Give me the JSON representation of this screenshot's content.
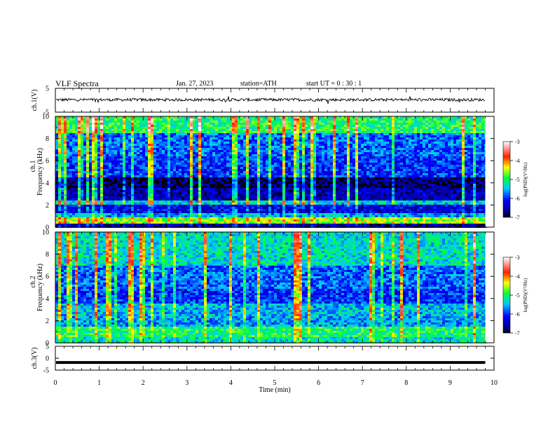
{
  "header": {
    "title": "VLF  Spectra",
    "date": "Jan. 27, 2023",
    "station": "station=ATH",
    "start": "start  UT  =   0 : 30 : 1"
  },
  "chart_data": [
    {
      "type": "line",
      "panel": "ch1-waveform",
      "ylabel": "ch.1(V)",
      "ylim": [
        -5,
        5
      ],
      "yticks": [
        "5",
        "-5"
      ],
      "xlim": [
        0,
        9.8
      ],
      "baseline_v": 0.2,
      "noise_amplitude_v": 1.2,
      "grid": false
    },
    {
      "type": "heatmap",
      "panel": "ch1-spectrogram",
      "ylabel_top": "ch.1",
      "ylabel": "Frequency  (kHz)",
      "ylim": [
        0,
        10
      ],
      "yticks": [
        "0",
        "2",
        "4",
        "6",
        "8",
        "10"
      ],
      "xlim": [
        0,
        9.8
      ],
      "colorbar": {
        "label": "log(PSD)(V²/Hz)",
        "range": [
          -7,
          -3
        ],
        "ticks": [
          "-3",
          "-4",
          "-5",
          "-6",
          "-7"
        ]
      },
      "bands": [
        {
          "f": [
            0.0,
            0.3
          ],
          "level": -6.6
        },
        {
          "f": [
            0.3,
            0.9
          ],
          "level": -4.6
        },
        {
          "f": [
            0.9,
            1.3
          ],
          "level": -5.6
        },
        {
          "f": [
            1.3,
            2.0
          ],
          "level": -6.3
        },
        {
          "f": [
            2.0,
            2.5
          ],
          "level": -5.4
        },
        {
          "f": [
            2.5,
            3.5
          ],
          "level": -6.5
        },
        {
          "f": [
            3.5,
            4.5
          ],
          "level": -6.8
        },
        {
          "f": [
            4.5,
            6.5
          ],
          "level": -6.0
        },
        {
          "f": [
            6.5,
            8.5
          ],
          "level": -5.8
        },
        {
          "f": [
            8.5,
            10.0
          ],
          "level": -5.0
        }
      ]
    },
    {
      "type": "heatmap",
      "panel": "ch2-spectrogram",
      "ylabel_top": "ch.2",
      "ylabel": "Frequency  (kHz)",
      "ylim": [
        0,
        10
      ],
      "yticks": [
        "0",
        "2",
        "4",
        "6",
        "8",
        "10"
      ],
      "xlim": [
        0,
        9.8
      ],
      "colorbar": {
        "label": "log(PSD)(V²/Hz)",
        "range": [
          -7,
          -3
        ],
        "ticks": [
          "-3",
          "-4",
          "-5",
          "-6",
          "-7"
        ]
      },
      "bands": [
        {
          "f": [
            0.0,
            0.5
          ],
          "level": -5.3
        },
        {
          "f": [
            0.5,
            1.5
          ],
          "level": -5.0
        },
        {
          "f": [
            1.5,
            2.5
          ],
          "level": -5.6
        },
        {
          "f": [
            2.5,
            3.5
          ],
          "level": -5.5
        },
        {
          "f": [
            3.5,
            5.0
          ],
          "level": -6.0
        },
        {
          "f": [
            5.0,
            7.0
          ],
          "level": -5.8
        },
        {
          "f": [
            7.0,
            10.0
          ],
          "level": -5.3
        }
      ]
    },
    {
      "type": "line",
      "panel": "ch3-waveform",
      "ylabel": "ch.3(V)",
      "ylim": [
        -5,
        5
      ],
      "yticks": [
        "5",
        "0",
        "-5"
      ],
      "xlim": [
        0,
        9.8
      ],
      "baseline_v": -1.8,
      "grid": false
    }
  ],
  "xaxis": {
    "label": "Time  (min)",
    "ticks": [
      "0",
      "1",
      "2",
      "3",
      "4",
      "5",
      "6",
      "7",
      "8",
      "9",
      "10"
    ],
    "range": [
      0,
      10
    ]
  }
}
